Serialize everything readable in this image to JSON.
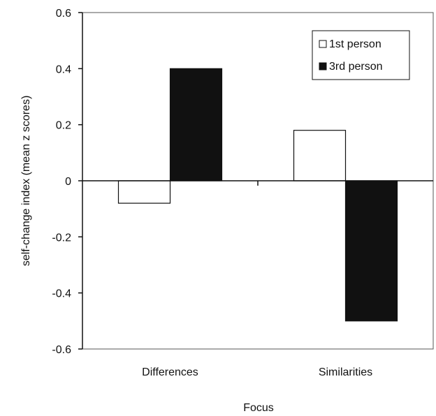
{
  "chart_data": {
    "type": "bar",
    "title": "",
    "xlabel": "Focus",
    "ylabel": "self-change index (mean z scores)",
    "categories": [
      "Differences",
      "Similarities"
    ],
    "series": [
      {
        "name": "1st person",
        "values": [
          -0.08,
          0.18
        ],
        "color": "#ffffff"
      },
      {
        "name": "3rd person",
        "values": [
          0.4,
          -0.5
        ],
        "color": "#111111"
      }
    ],
    "ylim": [
      -0.6,
      0.6
    ],
    "yticks": [
      0.6,
      0.4,
      0.2,
      0,
      -0.2,
      -0.4,
      -0.6
    ],
    "ytick_labels": [
      "0.6",
      "0.4",
      "0.2",
      "0",
      "-0.2",
      "-0.4",
      "-0.6"
    ],
    "grid": false,
    "legend_position": "top-right"
  }
}
